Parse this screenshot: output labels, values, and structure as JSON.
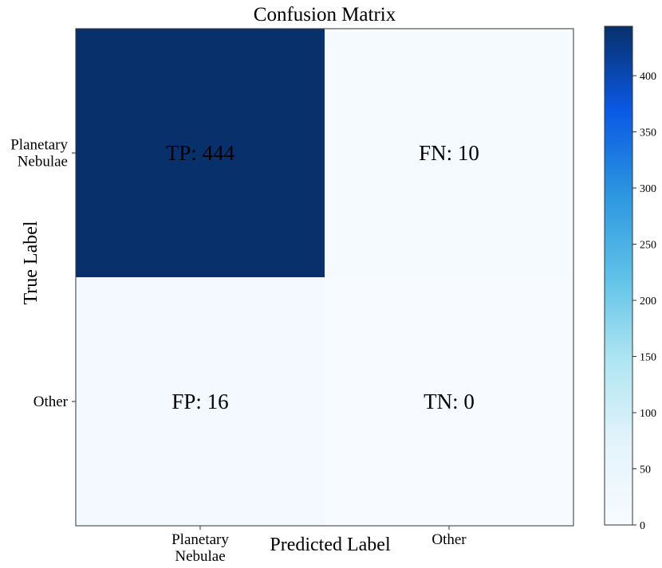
{
  "chart_data": {
    "type": "heatmap",
    "title": "Confusion Matrix",
    "xlabel": "Predicted Label",
    "ylabel": "True Label",
    "x_categories": [
      [
        "Planetary",
        "Nebulae"
      ],
      [
        "Other"
      ]
    ],
    "y_categories": [
      [
        "Planetary",
        "Nebulae"
      ],
      [
        "Other"
      ]
    ],
    "cells": [
      [
        {
          "text": "TP: 444",
          "value": 444
        },
        {
          "text": "FN: 10",
          "value": 10
        }
      ],
      [
        {
          "text": "FP: 16",
          "value": 16
        },
        {
          "text": "TN: 0",
          "value": 0
        }
      ]
    ],
    "colorbar": {
      "range": [
        0,
        444
      ],
      "ticks": [
        0,
        50,
        100,
        150,
        200,
        250,
        300,
        350,
        400
      ],
      "colormap": "Blues",
      "colors": [
        "#f7fbff",
        "#e3f3fb",
        "#aee5f2",
        "#5ec1e8",
        "#2b95e0",
        "#0a58e4",
        "#08306b"
      ]
    }
  }
}
